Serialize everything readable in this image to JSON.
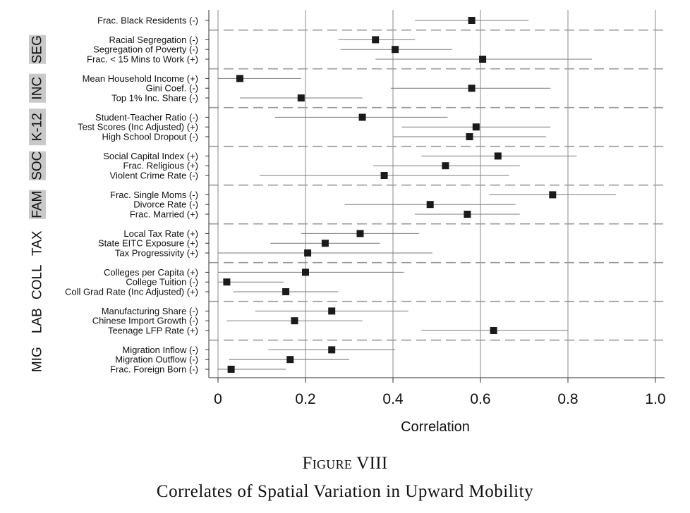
{
  "chart_data": {
    "type": "scatter",
    "xlabel": "Correlation",
    "xlim": [
      0,
      1.0
    ],
    "xticks": [
      "0",
      "0.2",
      "0.4",
      "0.6",
      "0.8",
      "1.0"
    ],
    "grid": "vertical",
    "groups": [
      {
        "label": "",
        "shaded": false,
        "items": [
          {
            "label": "Frac. Black Residents (-)",
            "value": 0.58,
            "ci": [
              0.45,
              0.71
            ]
          }
        ]
      },
      {
        "label": "SEG",
        "shaded": true,
        "items": [
          {
            "label": "Racial Segregation (-)",
            "value": 0.36,
            "ci": [
              0.275,
              0.45
            ]
          },
          {
            "label": "Segregation of Poverty (-)",
            "value": 0.405,
            "ci": [
              0.28,
              0.535
            ]
          },
          {
            "label": "Frac. < 15 Mins to Work (+)",
            "value": 0.605,
            "ci": [
              0.36,
              0.855
            ]
          }
        ]
      },
      {
        "label": "INC",
        "shaded": true,
        "items": [
          {
            "label": "Mean Household Income (+)",
            "value": 0.05,
            "ci": [
              0.0,
              0.19
            ]
          },
          {
            "label": "Gini Coef. (-)",
            "value": 0.58,
            "ci": [
              0.395,
              0.76
            ]
          },
          {
            "label": "Top 1% Inc. Share (-)",
            "value": 0.19,
            "ci": [
              0.05,
              0.33
            ]
          }
        ]
      },
      {
        "label": "K-12",
        "shaded": true,
        "items": [
          {
            "label": "Student-Teacher Ratio (-)",
            "value": 0.33,
            "ci": [
              0.13,
              0.525
            ]
          },
          {
            "label": "Test Scores (Inc Adjusted) (+)",
            "value": 0.59,
            "ci": [
              0.42,
              0.76
            ]
          },
          {
            "label": "High School Dropout (-)",
            "value": 0.575,
            "ci": [
              0.4,
              0.75
            ]
          }
        ]
      },
      {
        "label": "SOC",
        "shaded": true,
        "items": [
          {
            "label": "Social Capital Index (+)",
            "value": 0.64,
            "ci": [
              0.465,
              0.82
            ]
          },
          {
            "label": "Frac. Religious (+)",
            "value": 0.52,
            "ci": [
              0.355,
              0.69
            ]
          },
          {
            "label": "Violent Crime Rate (-)",
            "value": 0.38,
            "ci": [
              0.095,
              0.665
            ]
          }
        ]
      },
      {
        "label": "FAM",
        "shaded": true,
        "items": [
          {
            "label": "Frac. Single Moms (-)",
            "value": 0.765,
            "ci": [
              0.62,
              0.91
            ]
          },
          {
            "label": "Divorce Rate (-)",
            "value": 0.485,
            "ci": [
              0.29,
              0.68
            ]
          },
          {
            "label": "Frac. Married (+)",
            "value": 0.57,
            "ci": [
              0.45,
              0.69
            ]
          }
        ]
      },
      {
        "label": "TAX",
        "shaded": false,
        "items": [
          {
            "label": "Local Tax Rate (+)",
            "value": 0.325,
            "ci": [
              0.19,
              0.46
            ]
          },
          {
            "label": "State EITC Exposure (+)",
            "value": 0.245,
            "ci": [
              0.12,
              0.37
            ]
          },
          {
            "label": "Tax Progressivity (+)",
            "value": 0.205,
            "ci": [
              0.0,
              0.49
            ]
          }
        ]
      },
      {
        "label": "COLL",
        "shaded": false,
        "items": [
          {
            "label": "Colleges per Capita (+)",
            "value": 0.2,
            "ci": [
              0.0,
              0.425
            ]
          },
          {
            "label": "College Tuition (-)",
            "value": 0.02,
            "ci": [
              0.0,
              0.15
            ]
          },
          {
            "label": "Coll Grad Rate (Inc Adjusted) (+)",
            "value": 0.155,
            "ci": [
              0.035,
              0.275
            ]
          }
        ]
      },
      {
        "label": "LAB",
        "shaded": false,
        "items": [
          {
            "label": "Manufacturing Share (-)",
            "value": 0.26,
            "ci": [
              0.085,
              0.435
            ]
          },
          {
            "label": "Chinese Import Growth (-)",
            "value": 0.175,
            "ci": [
              0.02,
              0.33
            ]
          },
          {
            "label": "Teenage LFP Rate (+)",
            "value": 0.63,
            "ci": [
              0.465,
              0.8
            ]
          }
        ]
      },
      {
        "label": "MIG",
        "shaded": false,
        "items": [
          {
            "label": "Migration Inflow (-)",
            "value": 0.26,
            "ci": [
              0.115,
              0.405
            ]
          },
          {
            "label": "Migration Outflow (-)",
            "value": 0.165,
            "ci": [
              0.025,
              0.3
            ]
          },
          {
            "label": "Frac. Foreign Born (-)",
            "value": 0.03,
            "ci": [
              0.0,
              0.155
            ]
          }
        ]
      }
    ]
  },
  "figure": {
    "label": "Figure VIII",
    "title": "Correlates of Spatial Variation in Upward Mobility"
  }
}
